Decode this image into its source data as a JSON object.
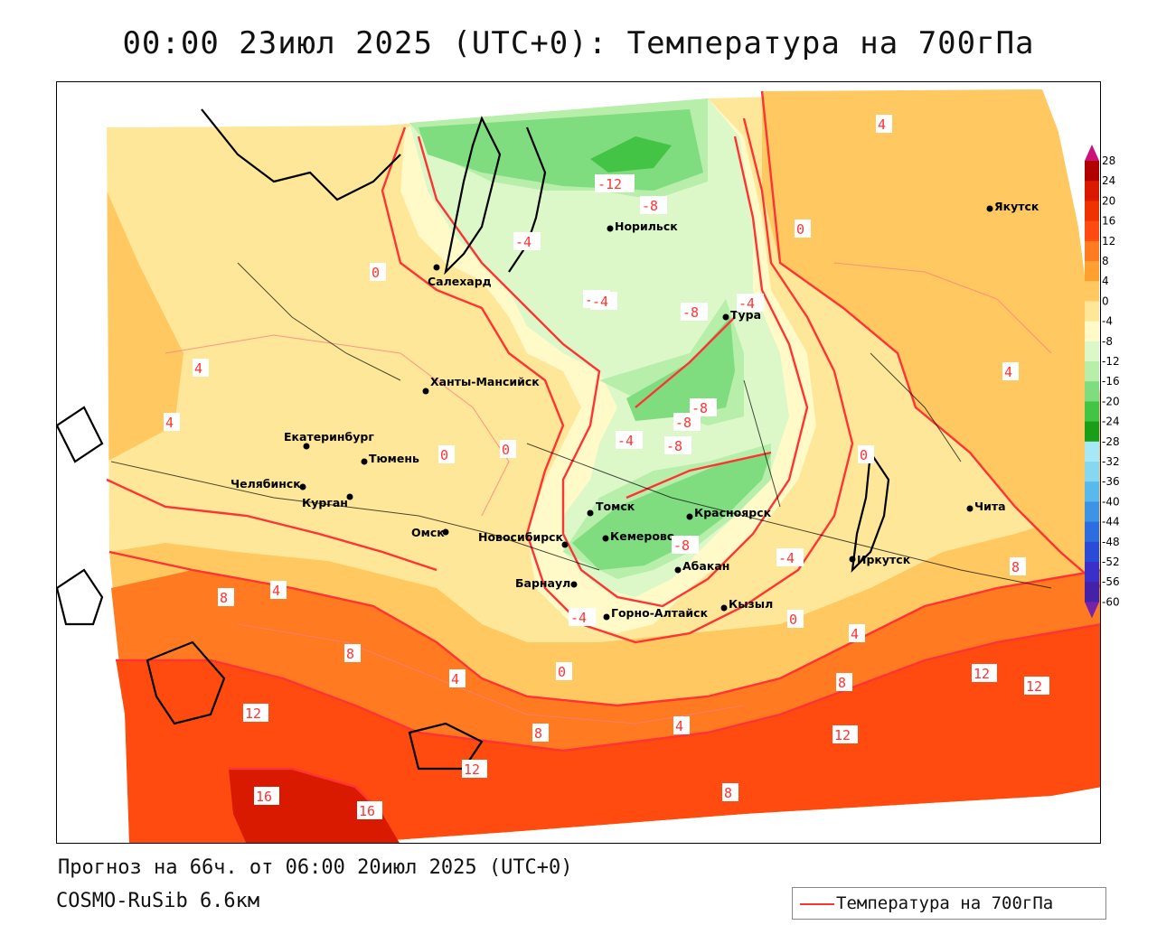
{
  "title": "00:00 23июл 2025 (UTC+0): Температура на 700гПа",
  "footer": {
    "forecast": "Прогноз на 66ч. от 06:00 20июл 2025 (UTC+0)",
    "model": "COSMO-RuSib 6.6км"
  },
  "legend": {
    "label": "Температура на 700гПа",
    "color": "#ff3333"
  },
  "scale": {
    "ticks": [
      "28",
      "24",
      "20",
      "16",
      "12",
      "8",
      "4",
      "0",
      "-4",
      "-8",
      "-12",
      "-16",
      "-20",
      "-24",
      "-28",
      "-32",
      "-36",
      "-40",
      "-44",
      "-48",
      "-52",
      "-56",
      "-60"
    ],
    "colors": [
      "#b00000",
      "#d91a00",
      "#ee3300",
      "#ff4a10",
      "#ff7a20",
      "#ffa030",
      "#ffc860",
      "#ffe79a",
      "#fffac8",
      "#dcf8c8",
      "#b6eeaa",
      "#7fdc7f",
      "#44c444",
      "#1a9e1a",
      "#a6e8f5",
      "#86d7f0",
      "#5ab9ec",
      "#3d93e6",
      "#2c6ee0",
      "#2a4bd8",
      "#3a2fc8",
      "#4422a8",
      "#3b1090",
      "#550088"
    ],
    "top_color": "#cc1177",
    "bottom_color": "#7722aa"
  },
  "cities": [
    {
      "name": "Салехард"
    },
    {
      "name": "Норильск"
    },
    {
      "name": "Тура"
    },
    {
      "name": "Якутск"
    },
    {
      "name": "Ханты-Мансийск"
    },
    {
      "name": "Екатеринбург"
    },
    {
      "name": "Тюмень"
    },
    {
      "name": "Челябинск"
    },
    {
      "name": "Курган"
    },
    {
      "name": "Омск"
    },
    {
      "name": "Новосибирск"
    },
    {
      "name": "Томск"
    },
    {
      "name": "Кемерово"
    },
    {
      "name": "Красноярск"
    },
    {
      "name": "Абакан"
    },
    {
      "name": "Барнаул"
    },
    {
      "name": "Горно-Алтайск"
    },
    {
      "name": "Кызыл"
    },
    {
      "name": "Иркутск"
    },
    {
      "name": "Чита"
    }
  ],
  "isoline_labels": [
    "-12",
    "-8",
    "-4",
    "-4",
    "-8",
    "-4",
    "-4",
    "-8",
    "-8",
    "-8",
    "-4",
    "-8",
    "-4",
    "-4",
    "0",
    "0",
    "0",
    "0",
    "0",
    "0",
    "0",
    "4",
    "4",
    "4",
    "4",
    "4",
    "4",
    "4",
    "4",
    "8",
    "8",
    "8",
    "8",
    "8",
    "8",
    "12",
    "12",
    "12",
    "12",
    "12",
    "16",
    "16"
  ]
}
